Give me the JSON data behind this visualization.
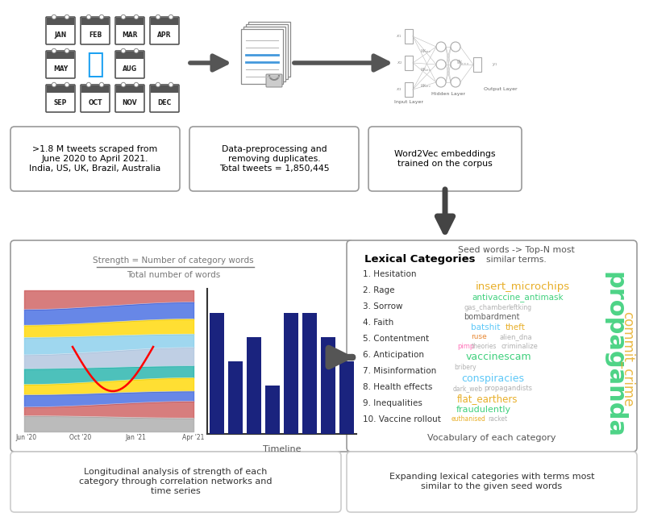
{
  "bg_color": "#ffffff",
  "box1_text": ">1.8 M tweets scraped from\nJune 2020 to April 2021.\nIndia, US, UK, Brazil, Australia",
  "box2_text": "Data-preprocessing and\nremoving duplicates.\nTotal tweets = 1,850,445",
  "box3_text": "Word2Vec embeddings\ntrained on the corpus",
  "box4_text": "Longitudinal analysis of strength of each\ncategory through correlation networks and\ntime series",
  "box5_text": "Expanding lexical categories with terms most\nsimilar to the given seed words",
  "lexical_title": "Lexical Categories",
  "lexical_items": [
    "1. Hesitation",
    "2. Rage",
    "3. Sorrow",
    "4. Faith",
    "5. Contentment",
    "6. Anticipation",
    "7. Misinformation",
    "8. Health effects",
    "9. Inequalities",
    "10. Vaccine rollout"
  ],
  "seed_words_text": "Seed words -> Top-N most\nsimilar terms.",
  "vocab_text": "Vocabulary of each category",
  "timeline_label": "Timeline",
  "bar_heights": [
    5,
    3,
    4,
    2,
    5,
    5,
    4,
    3
  ],
  "bar_color": "#1a237e",
  "wc_words": [
    [
      "insert_microchips",
      9.5,
      590,
      355,
      "#e6a817"
    ],
    [
      "antivaccine_antimask",
      7.5,
      585,
      369,
      "#2ecc71"
    ],
    [
      "gas_chamber",
      6.0,
      576,
      381,
      "#aaaaaa"
    ],
    [
      "leftking",
      5.5,
      630,
      381,
      "#aaaaaa"
    ],
    [
      "bombardment",
      7.0,
      575,
      393,
      "#555555"
    ],
    [
      "batshit",
      7.5,
      584,
      406,
      "#4fc3f7"
    ],
    [
      "theft",
      7.5,
      627,
      406,
      "#e6a817"
    ],
    [
      "ruse",
      6.5,
      584,
      418,
      "#e67e22"
    ],
    [
      "alien_dna",
      6.0,
      620,
      418,
      "#aaaaaa"
    ],
    [
      "pimp",
      6.0,
      567,
      430,
      "#ff69b4"
    ],
    [
      "theories",
      5.5,
      585,
      430,
      "#aaaaaa"
    ],
    [
      "criminalize",
      6.0,
      622,
      430,
      "#aaaaaa"
    ],
    [
      "vaccinescam",
      9.0,
      578,
      443,
      "#2ecc71"
    ],
    [
      "bribery",
      5.5,
      563,
      456,
      "#aaaaaa"
    ],
    [
      "conspiracies",
      9.0,
      572,
      469,
      "#4fc3f7"
    ],
    [
      "dark_web",
      5.5,
      562,
      482,
      "#aaaaaa"
    ],
    [
      "propagandists",
      6.0,
      600,
      482,
      "#aaaaaa"
    ],
    [
      "flat_earthers",
      8.5,
      567,
      495,
      "#e6a817"
    ],
    [
      "fraudulently",
      8.0,
      566,
      508,
      "#2ecc71"
    ],
    [
      "euthanised",
      5.5,
      560,
      519,
      "#e6a817"
    ],
    [
      "racket",
      5.5,
      605,
      519,
      "#aaaaaa"
    ]
  ],
  "sankey_colors": [
    "#cd5c5c",
    "#4169e1",
    "#ffd700",
    "#4169e1",
    "#b0c4de",
    "#20b2aa",
    "#ffd700",
    "#b0c4de",
    "#cd5c5c",
    "#808080"
  ],
  "arrow_dark": "#4a4a4a"
}
